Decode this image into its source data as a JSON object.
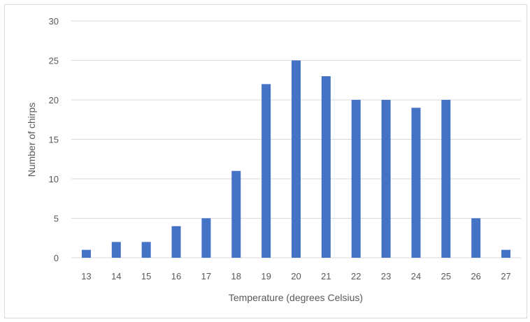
{
  "chart_data": {
    "type": "bar",
    "title": "",
    "xlabel": "Temperature (degrees Celsius)",
    "ylabel": "Number of chirps",
    "categories": [
      "13",
      "14",
      "15",
      "16",
      "17",
      "18",
      "19",
      "20",
      "21",
      "22",
      "23",
      "24",
      "25",
      "26",
      "27"
    ],
    "values": [
      1,
      2,
      2,
      4,
      5,
      11,
      22,
      25,
      23,
      20,
      20,
      19,
      20,
      5,
      1
    ],
    "ylim": [
      0,
      30
    ],
    "yticks": [
      0,
      5,
      10,
      15,
      20,
      25,
      30
    ],
    "grid": true,
    "legend": "none",
    "bar_color": "#4472c4",
    "grid_color": "#d9d9d9"
  }
}
